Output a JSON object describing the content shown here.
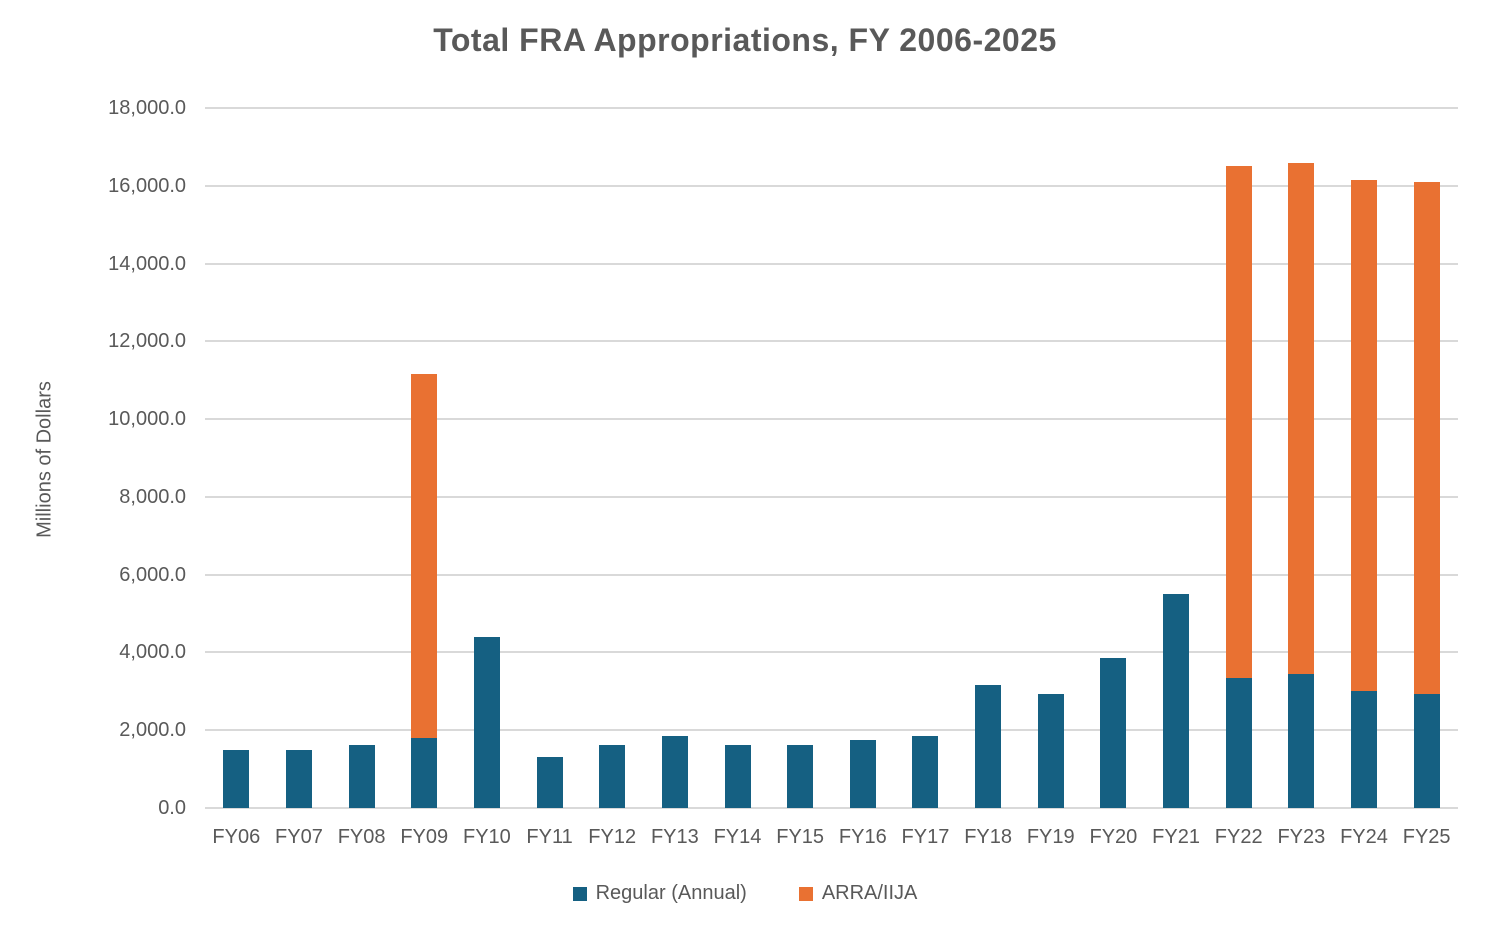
{
  "title": "Total FRA Appropriations, FY 2006-2025",
  "y_axis_title": "Millions of Dollars",
  "palette": {
    "regular_series": "#156082",
    "arra_iija_series": "#E97132",
    "gridline": "#D9D9D9",
    "text": "#595959"
  },
  "legend": [
    {
      "label": "Regular (Annual)",
      "color": "#156082"
    },
    {
      "label": "ARRA/IIJA",
      "color": "#E97132"
    }
  ],
  "chart_data": {
    "type": "bar",
    "stacked": true,
    "title": "Total FRA Appropriations, FY 2006-2025",
    "xlabel": "",
    "ylabel": "Millions of Dollars",
    "ylim": [
      0,
      18000
    ],
    "ytick_step": 2000,
    "ytick_labels": [
      "0.0",
      "2,000.0",
      "4,000.0",
      "6,000.0",
      "8,000.0",
      "10,000.0",
      "12,000.0",
      "14,000.0",
      "16,000.0",
      "18,000.0"
    ],
    "grid": true,
    "legend_position": "bottom",
    "categories": [
      "FY06",
      "FY07",
      "FY08",
      "FY09",
      "FY10",
      "FY11",
      "FY12",
      "FY13",
      "FY14",
      "FY15",
      "FY16",
      "FY17",
      "FY18",
      "FY19",
      "FY20",
      "FY21",
      "FY22",
      "FY23",
      "FY24",
      "FY25"
    ],
    "series": [
      {
        "name": "Regular (Annual)",
        "color": "#156082",
        "values": [
          1480,
          1480,
          1610,
          1800,
          4390,
          1310,
          1630,
          1850,
          1630,
          1630,
          1740,
          1850,
          3170,
          2940,
          3850,
          5500,
          3340,
          3450,
          3000,
          2930
        ]
      },
      {
        "name": "ARRA/IIJA",
        "color": "#E97132",
        "values": [
          0,
          0,
          0,
          9370,
          0,
          0,
          0,
          0,
          0,
          0,
          0,
          0,
          0,
          0,
          0,
          0,
          13170,
          13130,
          13150,
          13170
        ]
      }
    ]
  }
}
